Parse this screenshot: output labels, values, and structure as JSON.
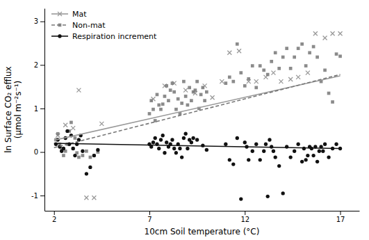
{
  "chart_data": {
    "type": "scatter",
    "xlabel": "10cm Soil temperature (°C)",
    "ylabel": "ln Surface CO₂ efflux\n(μmol m⁻²s⁻¹)",
    "xlim": [
      1.5,
      18
    ],
    "ylim": [
      -1.35,
      3.3
    ],
    "xticks": [
      2,
      7,
      12,
      17
    ],
    "yticks": [
      -1,
      0,
      1,
      2,
      3
    ],
    "legend": "upper left",
    "series": [
      {
        "name": "Mat",
        "color": "#999999",
        "marker": "x",
        "line_style": "solid",
        "x": [
          2.2,
          2.6,
          3.0,
          3.3,
          3.7,
          4.1,
          4.5,
          7.2,
          7.8,
          8.3,
          8.9,
          9.4,
          9.9,
          10.3,
          10.8,
          11.2,
          11.7,
          12.2,
          12.6,
          13.1,
          13.5,
          13.9,
          14.4,
          14.8,
          15.3,
          15.7,
          16.2,
          16.6,
          17.0
        ],
        "values": [
          0.38,
          0.62,
          0.55,
          1.42,
          -1.05,
          -1.05,
          0.65,
          1.22,
          1.52,
          1.58,
          1.42,
          1.35,
          1.52,
          1.25,
          1.62,
          2.28,
          2.32,
          1.62,
          1.62,
          1.72,
          1.82,
          1.62,
          1.67,
          1.72,
          1.82,
          2.72,
          2.62,
          2.72,
          2.72
        ],
        "trend": {
          "x": [
            2.0,
            17.0
          ],
          "values": [
            0.27,
            1.75
          ]
        }
      },
      {
        "name": "Non-mat",
        "color": "#777777",
        "marker": "square",
        "line_style": "dashed",
        "x": [
          2.1,
          2.2,
          2.3,
          2.4,
          2.5,
          2.6,
          2.7,
          2.8,
          2.9,
          3.0,
          3.1,
          3.2,
          3.3,
          3.5,
          3.7,
          3.9,
          4.1,
          4.3,
          7.0,
          7.1,
          7.2,
          7.3,
          7.4,
          7.5,
          7.6,
          7.7,
          7.8,
          7.9,
          8.0,
          8.1,
          8.2,
          8.3,
          8.4,
          8.5,
          8.6,
          8.7,
          8.8,
          8.9,
          9.0,
          9.1,
          9.2,
          9.3,
          9.4,
          9.5,
          9.6,
          9.7,
          9.8,
          9.9,
          10.0,
          11.0,
          11.2,
          11.4,
          11.6,
          11.8,
          12.0,
          12.2,
          12.4,
          12.6,
          12.8,
          13.0,
          13.2,
          13.4,
          13.6,
          13.8,
          14.0,
          14.2,
          14.4,
          14.6,
          14.8,
          15.0,
          15.2,
          15.4,
          15.6,
          15.8,
          16.0,
          16.2,
          16.4,
          16.6,
          16.8,
          17.0
        ],
        "values": [
          0.28,
          0.42,
          0.18,
          0.08,
          -0.08,
          0.02,
          0.18,
          0.48,
          0.68,
          0.08,
          0.32,
          -0.02,
          -0.12,
          -0.08,
          0.02,
          -0.12,
          -0.08,
          0.0,
          0.88,
          1.18,
          0.98,
          0.72,
          1.32,
          1.08,
          0.98,
          1.1,
          1.28,
          1.52,
          1.18,
          1.42,
          1.58,
          1.38,
          0.98,
          1.22,
          0.88,
          1.12,
          1.62,
          1.28,
          1.08,
          1.48,
          1.18,
          1.38,
          1.42,
          1.62,
          1.0,
          1.32,
          1.48,
          1.18,
          1.38,
          1.58,
          1.72,
          1.62,
          2.48,
          1.82,
          1.52,
          1.68,
          1.98,
          1.48,
          1.98,
          1.88,
          1.78,
          2.08,
          2.28,
          1.92,
          2.18,
          2.38,
          1.92,
          2.18,
          2.38,
          2.48,
          1.98,
          2.28,
          2.42,
          2.18,
          1.62,
          1.88,
          1.35,
          1.15,
          2.25,
          2.2
        ],
        "trend": {
          "x": [
            2.0,
            17.0
          ],
          "values": [
            0.1,
            1.78
          ]
        }
      },
      {
        "name": "Respiration increment",
        "color": "#111111",
        "marker": "circle",
        "line_style": "solid",
        "x": [
          2.1,
          2.2,
          2.3,
          2.4,
          2.5,
          2.6,
          2.7,
          2.8,
          2.9,
          3.0,
          3.1,
          3.2,
          3.3,
          3.4,
          3.5,
          3.7,
          3.9,
          4.1,
          4.3,
          7.0,
          7.1,
          7.2,
          7.3,
          7.4,
          7.5,
          7.6,
          7.7,
          7.8,
          7.9,
          8.0,
          8.1,
          8.2,
          8.3,
          8.4,
          8.5,
          8.6,
          8.7,
          8.8,
          8.9,
          9.0,
          9.1,
          9.2,
          9.3,
          9.5,
          9.8,
          10.0,
          11.0,
          11.2,
          11.4,
          11.6,
          11.8,
          12.0,
          12.1,
          12.2,
          12.4,
          12.6,
          12.8,
          13.0,
          13.1,
          13.2,
          13.3,
          13.4,
          13.5,
          13.6,
          13.8,
          14.0,
          14.2,
          14.4,
          14.6,
          14.8,
          15.0,
          15.1,
          15.2,
          15.3,
          15.4,
          15.5,
          15.6,
          15.7,
          15.8,
          15.9,
          16.0,
          16.1,
          16.2,
          16.4,
          16.6,
          16.8,
          17.0
        ],
        "values": [
          0.18,
          0.28,
          0.12,
          0.02,
          0.08,
          0.32,
          0.48,
          0.18,
          0.38,
          0.08,
          -0.08,
          0.18,
          0.28,
          0.38,
          0.02,
          -0.5,
          -0.35,
          -0.08,
          0.05,
          0.18,
          0.12,
          0.22,
          0.32,
          0.18,
          0.08,
          0.28,
          0.38,
          -0.02,
          0.22,
          0.12,
          0.18,
          0.28,
          0.08,
          -0.02,
          0.18,
          0.08,
          -0.12,
          0.32,
          0.42,
          0.08,
          0.28,
          0.22,
          0.32,
          0.28,
          0.15,
          0.05,
          0.18,
          -0.18,
          -0.28,
          0.32,
          -1.08,
          0.22,
          0.12,
          -0.18,
          0.02,
          0.18,
          -0.18,
          0.02,
          0.18,
          -1.02,
          0.28,
          0.12,
          0.02,
          -0.12,
          -0.32,
          -0.95,
          0.12,
          -0.12,
          0.02,
          0.18,
          -0.22,
          0.08,
          -0.18,
          -0.08,
          0.12,
          0.08,
          -0.08,
          0.12,
          -0.22,
          0.02,
          0.12,
          0.02,
          0.18,
          -0.12,
          0.08,
          0.18,
          0.08
        ],
        "trend": {
          "x": [
            2.0,
            17.0
          ],
          "values": [
            0.2,
            0.08
          ]
        }
      }
    ]
  }
}
